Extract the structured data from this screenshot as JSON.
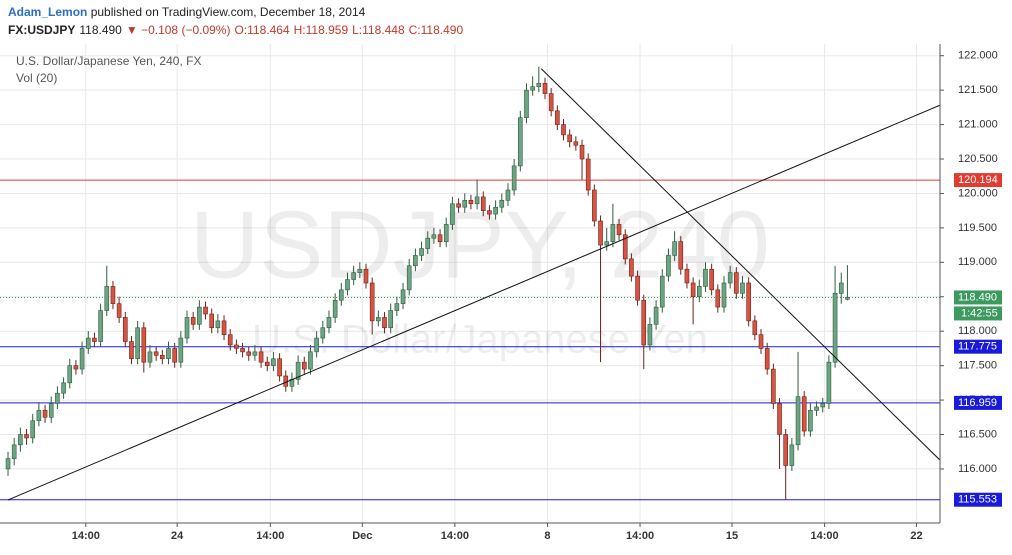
{
  "header": {
    "author": "Adam_Lemon",
    "published": "published on TradingView.com, December 18, 2014",
    "symbol": "FX:USDJPY",
    "price": "118.490",
    "change": "▼ −0.108 (−0.09%)",
    "open": "O:118.464",
    "high": "H:118.959",
    "low": "L:118.448",
    "close": "C:118.490"
  },
  "chart_data": {
    "type": "candlestick",
    "legend": "U.S. Dollar/Japanese Yen, 240, FX",
    "indicator": "Vol (20)",
    "watermark": "USDJPY, 240",
    "watermark_sub": "U.S. Dollar/Japanese Yen",
    "up_color": "#6ba583",
    "down_color": "#d75442",
    "grid": true,
    "xlim": [
      -1.3,
      151
    ],
    "ylim": [
      115.215,
      122.17
    ],
    "yticks": [
      {
        "value": 116,
        "label": "116.000"
      },
      {
        "value": 116.5,
        "label": "116.500"
      },
      {
        "value": 117,
        "label": "117.000"
      },
      {
        "value": 117.5,
        "label": "117.500"
      },
      {
        "value": 118,
        "label": "118.000"
      },
      {
        "value": 118.5,
        "label": "118.500"
      },
      {
        "value": 119,
        "label": "119.000"
      },
      {
        "value": 119.5,
        "label": "119.500"
      },
      {
        "value": 120,
        "label": "120.000"
      },
      {
        "value": 120.5,
        "label": "120.500"
      },
      {
        "value": 121,
        "label": "121.000"
      },
      {
        "value": 121.5,
        "label": "121.500"
      },
      {
        "value": 122,
        "label": "122.000"
      }
    ],
    "xticks": [
      {
        "value": 12.6,
        "label": "14:00"
      },
      {
        "value": 27.4,
        "label": "24"
      },
      {
        "value": 42.5,
        "label": "14:00"
      },
      {
        "value": 57.4,
        "label": "Dec"
      },
      {
        "value": 72.4,
        "label": "14:00"
      },
      {
        "value": 87.4,
        "label": "8"
      },
      {
        "value": 102.4,
        "label": "14:00"
      },
      {
        "value": 117.3,
        "label": "15"
      },
      {
        "value": 132.3,
        "label": "14:00"
      },
      {
        "value": 147.2,
        "label": "22"
      }
    ],
    "levels": [
      {
        "value": 120.194,
        "color": "#e03c31"
      },
      {
        "value": 117.775,
        "color": "#1a1adb"
      },
      {
        "value": 116.959,
        "color": "#1a1adb"
      },
      {
        "value": 115.553,
        "color": "#1a1adb"
      }
    ],
    "last_price": {
      "value": 118.49,
      "label": "118.490",
      "countdown": "1:42:55",
      "color": "#3c9a5f"
    },
    "trendline_color": "#111111",
    "trendlines": [
      {
        "x": [
          0,
          152
        ],
        "y": [
          115.55,
          121.32
        ]
      },
      {
        "x": [
          86.4,
          152
        ],
        "y": [
          121.81,
          116.04
        ]
      }
    ],
    "ohlc": [
      [
        116.0,
        116.25,
        115.9,
        116.15
      ],
      [
        116.15,
        116.45,
        116.05,
        116.35
      ],
      [
        116.35,
        116.6,
        116.25,
        116.5
      ],
      [
        116.5,
        116.58,
        116.35,
        116.45
      ],
      [
        116.45,
        116.8,
        116.37,
        116.7
      ],
      [
        116.7,
        116.97,
        116.62,
        116.85
      ],
      [
        116.85,
        116.93,
        116.67,
        116.75
      ],
      [
        116.75,
        117.05,
        116.67,
        116.95
      ],
      [
        116.95,
        117.2,
        116.87,
        117.1
      ],
      [
        117.1,
        117.33,
        117.02,
        117.25
      ],
      [
        117.25,
        117.6,
        117.17,
        117.5
      ],
      [
        117.5,
        117.58,
        117.37,
        117.45
      ],
      [
        117.45,
        117.85,
        117.37,
        117.75
      ],
      [
        117.75,
        118.0,
        117.67,
        117.9
      ],
      [
        117.9,
        117.98,
        117.77,
        117.85
      ],
      [
        117.85,
        118.4,
        117.77,
        118.3
      ],
      [
        118.3,
        118.95,
        118.22,
        118.65
      ],
      [
        118.65,
        118.73,
        118.32,
        118.4
      ],
      [
        118.4,
        118.5,
        118.12,
        118.2
      ],
      [
        118.2,
        118.28,
        117.77,
        117.85
      ],
      [
        117.85,
        117.93,
        117.52,
        117.6
      ],
      [
        117.6,
        118.15,
        117.52,
        118.05
      ],
      [
        118.05,
        118.13,
        117.4,
        117.55
      ],
      [
        117.55,
        117.8,
        117.47,
        117.7
      ],
      [
        117.7,
        117.78,
        117.57,
        117.65
      ],
      [
        117.65,
        117.73,
        117.52,
        117.6
      ],
      [
        117.6,
        117.85,
        117.52,
        117.75
      ],
      [
        117.75,
        117.83,
        117.47,
        117.55
      ],
      [
        117.55,
        118.0,
        117.47,
        117.9
      ],
      [
        117.9,
        118.3,
        117.82,
        118.2
      ],
      [
        118.2,
        118.28,
        118.02,
        118.1
      ],
      [
        118.1,
        118.45,
        118.02,
        118.35
      ],
      [
        118.35,
        118.43,
        118.17,
        118.25
      ],
      [
        118.25,
        118.33,
        117.97,
        118.05
      ],
      [
        118.05,
        118.25,
        117.97,
        118.15
      ],
      [
        118.15,
        118.23,
        117.87,
        117.95
      ],
      [
        117.95,
        118.03,
        117.72,
        117.8
      ],
      [
        117.8,
        117.88,
        117.67,
        117.75
      ],
      [
        117.75,
        117.83,
        117.62,
        117.7
      ],
      [
        117.7,
        117.78,
        117.57,
        117.65
      ],
      [
        117.65,
        117.8,
        117.57,
        117.7
      ],
      [
        117.7,
        117.78,
        117.47,
        117.55
      ],
      [
        117.55,
        117.63,
        117.42,
        117.5
      ],
      [
        117.5,
        117.7,
        117.42,
        117.6
      ],
      [
        117.6,
        117.68,
        117.27,
        117.35
      ],
      [
        117.35,
        117.43,
        117.12,
        117.2
      ],
      [
        117.2,
        117.4,
        117.12,
        117.3
      ],
      [
        117.3,
        117.65,
        117.22,
        117.55
      ],
      [
        117.55,
        117.63,
        117.37,
        117.45
      ],
      [
        117.45,
        117.8,
        117.37,
        117.7
      ],
      [
        117.7,
        118.0,
        117.62,
        117.9
      ],
      [
        117.9,
        118.15,
        117.82,
        118.05
      ],
      [
        118.05,
        118.3,
        117.97,
        118.2
      ],
      [
        118.2,
        118.55,
        118.12,
        118.45
      ],
      [
        118.45,
        118.7,
        118.37,
        118.6
      ],
      [
        118.6,
        118.85,
        118.52,
        118.75
      ],
      [
        118.75,
        118.95,
        118.67,
        118.85
      ],
      [
        118.85,
        119.0,
        118.77,
        118.9
      ],
      [
        118.9,
        118.98,
        118.62,
        118.7
      ],
      [
        118.7,
        118.78,
        117.95,
        118.15
      ],
      [
        118.15,
        118.3,
        118.07,
        118.2
      ],
      [
        118.2,
        118.28,
        117.97,
        118.05
      ],
      [
        118.05,
        118.4,
        117.97,
        118.3
      ],
      [
        118.3,
        118.5,
        118.22,
        118.4
      ],
      [
        118.4,
        118.7,
        118.32,
        118.6
      ],
      [
        118.6,
        119.05,
        118.52,
        118.95
      ],
      [
        118.95,
        119.2,
        118.87,
        119.1
      ],
      [
        119.1,
        119.3,
        119.02,
        119.2
      ],
      [
        119.2,
        119.45,
        119.12,
        119.35
      ],
      [
        119.35,
        119.5,
        119.27,
        119.4
      ],
      [
        119.4,
        119.48,
        119.22,
        119.3
      ],
      [
        119.3,
        119.65,
        119.22,
        119.55
      ],
      [
        119.55,
        119.95,
        119.47,
        119.85
      ],
      [
        119.85,
        119.93,
        119.72,
        119.8
      ],
      [
        119.8,
        120.0,
        119.72,
        119.9
      ],
      [
        119.9,
        119.98,
        119.77,
        119.85
      ],
      [
        119.85,
        120.2,
        119.77,
        119.95
      ],
      [
        119.95,
        120.03,
        119.67,
        119.75
      ],
      [
        119.75,
        119.83,
        119.62,
        119.7
      ],
      [
        119.7,
        119.9,
        119.62,
        119.8
      ],
      [
        119.8,
        120.0,
        119.72,
        119.9
      ],
      [
        119.9,
        120.15,
        119.82,
        120.05
      ],
      [
        120.05,
        120.5,
        119.97,
        120.4
      ],
      [
        120.4,
        121.2,
        120.32,
        121.1
      ],
      [
        121.1,
        121.6,
        121.02,
        121.5
      ],
      [
        121.5,
        121.7,
        121.42,
        121.55
      ],
      [
        121.55,
        121.84,
        121.47,
        121.6
      ],
      [
        121.6,
        121.68,
        121.37,
        121.45
      ],
      [
        121.45,
        121.53,
        121.12,
        121.2
      ],
      [
        121.2,
        121.28,
        120.92,
        121.0
      ],
      [
        121.0,
        121.08,
        120.77,
        120.85
      ],
      [
        120.85,
        120.93,
        120.67,
        120.75
      ],
      [
        120.75,
        120.83,
        120.62,
        120.7
      ],
      [
        120.7,
        120.78,
        120.2,
        120.5
      ],
      [
        120.5,
        120.58,
        119.97,
        120.05
      ],
      [
        120.05,
        120.13,
        119.52,
        119.6
      ],
      [
        119.6,
        119.68,
        117.55,
        119.25
      ],
      [
        119.25,
        119.5,
        119.17,
        119.3
      ],
      [
        119.3,
        119.85,
        119.22,
        119.55
      ],
      [
        119.55,
        119.63,
        119.32,
        119.4
      ],
      [
        119.4,
        119.48,
        118.97,
        119.05
      ],
      [
        119.05,
        119.13,
        118.72,
        118.8
      ],
      [
        118.8,
        118.88,
        118.37,
        118.45
      ],
      [
        118.45,
        118.53,
        117.45,
        117.8
      ],
      [
        117.8,
        118.2,
        117.72,
        118.1
      ],
      [
        118.1,
        118.45,
        118.02,
        118.35
      ],
      [
        118.35,
        118.9,
        118.27,
        118.8
      ],
      [
        118.8,
        119.2,
        118.72,
        119.1
      ],
      [
        119.1,
        119.45,
        119.02,
        119.3
      ],
      [
        119.3,
        119.38,
        118.82,
        118.9
      ],
      [
        118.9,
        118.98,
        118.62,
        118.7
      ],
      [
        118.7,
        118.78,
        118.1,
        118.5
      ],
      [
        118.5,
        118.75,
        118.42,
        118.65
      ],
      [
        118.65,
        119.0,
        118.57,
        118.9
      ],
      [
        118.9,
        118.98,
        118.52,
        118.6
      ],
      [
        118.6,
        118.68,
        118.27,
        118.35
      ],
      [
        118.35,
        118.8,
        118.27,
        118.7
      ],
      [
        118.7,
        118.95,
        118.62,
        118.85
      ],
      [
        118.85,
        118.93,
        118.47,
        118.55
      ],
      [
        118.55,
        118.8,
        118.47,
        118.7
      ],
      [
        118.7,
        118.78,
        118.07,
        118.15
      ],
      [
        118.15,
        118.23,
        117.87,
        117.95
      ],
      [
        117.95,
        118.03,
        117.67,
        117.75
      ],
      [
        117.75,
        117.83,
        117.37,
        117.45
      ],
      [
        117.45,
        117.53,
        116.87,
        116.95
      ],
      [
        116.95,
        117.03,
        116.0,
        116.5
      ],
      [
        116.5,
        116.58,
        115.56,
        116.05
      ],
      [
        116.05,
        116.45,
        115.97,
        116.35
      ],
      [
        116.35,
        117.7,
        116.27,
        117.05
      ],
      [
        117.05,
        117.13,
        116.47,
        116.55
      ],
      [
        116.55,
        116.95,
        116.47,
        116.85
      ],
      [
        116.85,
        116.98,
        116.77,
        116.9
      ],
      [
        116.9,
        117.03,
        116.82,
        116.95
      ],
      [
        116.95,
        117.65,
        116.87,
        117.55
      ],
      [
        117.55,
        118.95,
        117.47,
        118.55
      ],
      [
        118.55,
        118.85,
        118.4,
        118.7
      ],
      [
        118.464,
        118.959,
        118.448,
        118.49
      ]
    ]
  }
}
